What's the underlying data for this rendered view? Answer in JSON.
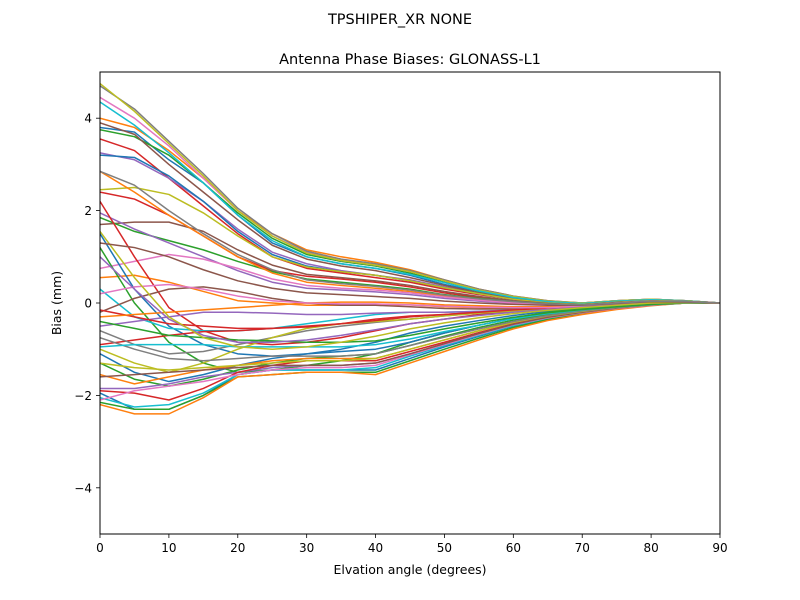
{
  "chart_data": {
    "type": "line",
    "suptitle": "TPSHIPER_XR     NONE",
    "title": "Antenna Phase Biases: GLONASS-L1",
    "xlabel": "Elvation angle (degrees)",
    "ylabel": "Bias (mm)",
    "xlim": [
      0,
      90
    ],
    "ylim": [
      -5,
      5
    ],
    "xticks": [
      0,
      10,
      20,
      30,
      40,
      50,
      60,
      70,
      80,
      90
    ],
    "yticks": [
      -4,
      -2,
      0,
      2,
      4
    ],
    "grid": false,
    "x": [
      0,
      5,
      10,
      15,
      20,
      25,
      30,
      35,
      40,
      45,
      50,
      55,
      60,
      65,
      70,
      75,
      80,
      85,
      90
    ],
    "series": [
      {
        "color": "#1f77b4",
        "values": [
          3.8,
          3.7,
          3.1,
          2.6,
          1.9,
          1.3,
          1.0,
          0.85,
          0.75,
          0.6,
          0.4,
          0.25,
          0.12,
          0.03,
          0.0,
          0.05,
          0.08,
          0.05,
          0.0
        ]
      },
      {
        "color": "#ff7f0e",
        "values": [
          4.0,
          3.8,
          3.3,
          2.7,
          2.0,
          1.5,
          1.15,
          1.0,
          0.88,
          0.72,
          0.5,
          0.3,
          0.15,
          0.05,
          0.0,
          0.05,
          0.08,
          0.05,
          0.0
        ]
      },
      {
        "color": "#2ca02c",
        "values": [
          3.75,
          3.6,
          3.2,
          2.6,
          1.95,
          1.4,
          1.05,
          0.9,
          0.8,
          0.65,
          0.45,
          0.25,
          0.1,
          0.02,
          -0.02,
          0.03,
          0.07,
          0.05,
          0.0
        ]
      },
      {
        "color": "#d62728",
        "values": [
          3.55,
          3.3,
          2.7,
          2.1,
          1.5,
          1.0,
          0.75,
          0.65,
          0.55,
          0.45,
          0.3,
          0.18,
          0.08,
          0.0,
          -0.03,
          0.02,
          0.06,
          0.04,
          0.0
        ]
      },
      {
        "color": "#9467bd",
        "values": [
          3.25,
          3.1,
          2.7,
          2.2,
          1.6,
          1.1,
          0.85,
          0.7,
          0.6,
          0.5,
          0.35,
          0.2,
          0.08,
          0.0,
          -0.03,
          0.02,
          0.05,
          0.04,
          0.0
        ]
      },
      {
        "color": "#8c564b",
        "values": [
          3.9,
          3.65,
          3.0,
          2.4,
          1.8,
          1.25,
          0.95,
          0.8,
          0.7,
          0.55,
          0.38,
          0.22,
          0.1,
          0.02,
          -0.02,
          0.03,
          0.06,
          0.04,
          0.0
        ]
      },
      {
        "color": "#e377c2",
        "values": [
          4.45,
          4.0,
          3.4,
          2.7,
          2.0,
          1.45,
          1.1,
          0.92,
          0.82,
          0.68,
          0.48,
          0.28,
          0.13,
          0.03,
          0.0,
          0.05,
          0.08,
          0.05,
          0.0
        ]
      },
      {
        "color": "#7f7f7f",
        "values": [
          4.7,
          4.2,
          3.5,
          2.8,
          2.05,
          1.5,
          1.12,
          0.95,
          0.85,
          0.7,
          0.5,
          0.3,
          0.15,
          0.05,
          0.0,
          0.05,
          0.08,
          0.05,
          0.0
        ]
      },
      {
        "color": "#bcbd22",
        "values": [
          4.75,
          4.15,
          3.45,
          2.75,
          2.0,
          1.45,
          1.08,
          0.92,
          0.82,
          0.68,
          0.48,
          0.28,
          0.14,
          0.04,
          0.0,
          0.05,
          0.08,
          0.05,
          0.0
        ]
      },
      {
        "color": "#17becf",
        "values": [
          4.35,
          3.85,
          3.25,
          2.6,
          1.9,
          1.35,
          1.0,
          0.85,
          0.75,
          0.62,
          0.44,
          0.26,
          0.12,
          0.03,
          -0.01,
          0.04,
          0.07,
          0.05,
          0.0
        ]
      },
      {
        "color": "#1f77b4",
        "values": [
          3.2,
          3.15,
          2.75,
          2.2,
          1.55,
          1.05,
          0.8,
          0.68,
          0.6,
          0.48,
          0.33,
          0.2,
          0.08,
          0.0,
          -0.03,
          0.02,
          0.05,
          0.04,
          0.0
        ]
      },
      {
        "color": "#bcbd22",
        "values": [
          2.45,
          2.5,
          2.35,
          1.95,
          1.45,
          1.0,
          0.78,
          0.68,
          0.6,
          0.48,
          0.33,
          0.2,
          0.08,
          0.0,
          -0.03,
          0.02,
          0.05,
          0.04,
          0.0
        ]
      },
      {
        "color": "#d62728",
        "values": [
          2.4,
          2.25,
          1.9,
          1.45,
          1.0,
          0.7,
          0.58,
          0.52,
          0.45,
          0.35,
          0.22,
          0.12,
          0.04,
          -0.02,
          -0.04,
          0.0,
          0.04,
          0.03,
          0.0
        ]
      },
      {
        "color": "#8c564b",
        "values": [
          1.7,
          1.75,
          1.75,
          1.55,
          1.15,
          0.82,
          0.62,
          0.55,
          0.48,
          0.38,
          0.25,
          0.14,
          0.05,
          -0.01,
          -0.04,
          0.01,
          0.04,
          0.03,
          0.0
        ]
      },
      {
        "color": "#2ca02c",
        "values": [
          1.85,
          1.55,
          1.35,
          1.15,
          0.9,
          0.68,
          0.52,
          0.45,
          0.38,
          0.3,
          0.18,
          0.1,
          0.03,
          -0.02,
          -0.05,
          0.0,
          0.04,
          0.03,
          0.0
        ]
      },
      {
        "color": "#ff7f0e",
        "values": [
          2.85,
          2.4,
          1.9,
          1.45,
          1.0,
          0.65,
          0.45,
          0.38,
          0.32,
          0.25,
          0.15,
          0.08,
          0.02,
          -0.03,
          -0.05,
          0.0,
          0.04,
          0.03,
          0.0
        ]
      },
      {
        "color": "#9467bd",
        "values": [
          1.95,
          1.6,
          1.3,
          1.0,
          0.7,
          0.45,
          0.32,
          0.28,
          0.24,
          0.18,
          0.1,
          0.04,
          -0.01,
          -0.04,
          -0.05,
          0.0,
          0.04,
          0.03,
          0.0
        ]
      },
      {
        "color": "#e377c2",
        "values": [
          0.75,
          0.9,
          1.05,
          0.95,
          0.75,
          0.52,
          0.38,
          0.32,
          0.28,
          0.22,
          0.13,
          0.06,
          0.0,
          -0.04,
          -0.05,
          0.0,
          0.04,
          0.03,
          0.0
        ]
      },
      {
        "color": "#ff7f0e",
        "values": [
          0.55,
          0.6,
          0.45,
          0.25,
          0.05,
          0.0,
          -0.05,
          -0.05,
          -0.03,
          -0.04,
          -0.08,
          -0.1,
          -0.12,
          -0.12,
          -0.1,
          -0.05,
          0.02,
          0.02,
          0.0
        ]
      },
      {
        "color": "#d62728",
        "values": [
          2.2,
          1.0,
          -0.1,
          -0.6,
          -0.85,
          -0.9,
          -0.85,
          -0.75,
          -0.6,
          -0.45,
          -0.35,
          -0.25,
          -0.18,
          -0.12,
          -0.08,
          -0.03,
          0.02,
          0.02,
          0.0
        ]
      },
      {
        "color": "#1f77b4",
        "values": [
          1.5,
          0.3,
          -0.5,
          -0.9,
          -1.1,
          -1.15,
          -1.1,
          -1.0,
          -0.85,
          -0.65,
          -0.5,
          -0.38,
          -0.27,
          -0.18,
          -0.1,
          -0.05,
          0.0,
          0.01,
          0.0
        ]
      },
      {
        "color": "#2ca02c",
        "values": [
          1.2,
          0.0,
          -0.85,
          -1.3,
          -1.5,
          -1.45,
          -1.35,
          -1.25,
          -1.1,
          -0.85,
          -0.65,
          -0.48,
          -0.33,
          -0.2,
          -0.12,
          -0.06,
          0.0,
          0.01,
          0.0
        ]
      },
      {
        "color": "#17becf",
        "values": [
          0.3,
          -0.3,
          -0.55,
          -0.6,
          -0.6,
          -0.55,
          -0.45,
          -0.35,
          -0.25,
          -0.2,
          -0.2,
          -0.18,
          -0.15,
          -0.12,
          -0.08,
          -0.04,
          0.01,
          0.01,
          0.0
        ]
      },
      {
        "color": "#8c564b",
        "values": [
          -0.2,
          0.1,
          0.3,
          0.35,
          0.25,
          0.1,
          0.0,
          -0.05,
          -0.05,
          -0.08,
          -0.12,
          -0.13,
          -0.13,
          -0.12,
          -0.08,
          -0.04,
          0.01,
          0.01,
          0.0
        ]
      },
      {
        "color": "#9467bd",
        "values": [
          -0.5,
          -0.4,
          -0.3,
          -0.2,
          -0.2,
          -0.22,
          -0.25,
          -0.25,
          -0.22,
          -0.2,
          -0.2,
          -0.18,
          -0.15,
          -0.12,
          -0.08,
          -0.04,
          0.01,
          0.01,
          0.0
        ]
      },
      {
        "color": "#d62728",
        "values": [
          -0.9,
          -0.8,
          -0.7,
          -0.62,
          -0.6,
          -0.55,
          -0.5,
          -0.45,
          -0.35,
          -0.28,
          -0.25,
          -0.2,
          -0.16,
          -0.12,
          -0.08,
          -0.04,
          0.0,
          0.01,
          0.0
        ]
      },
      {
        "color": "#7f7f7f",
        "values": [
          -0.6,
          -0.9,
          -1.1,
          -1.05,
          -0.9,
          -0.75,
          -0.6,
          -0.5,
          -0.42,
          -0.35,
          -0.28,
          -0.22,
          -0.17,
          -0.12,
          -0.08,
          -0.04,
          0.0,
          0.01,
          0.0
        ]
      },
      {
        "color": "#bcbd22",
        "values": [
          -1.0,
          -1.3,
          -1.5,
          -1.3,
          -1.0,
          -0.75,
          -0.55,
          -0.45,
          -0.4,
          -0.35,
          -0.28,
          -0.22,
          -0.17,
          -0.12,
          -0.08,
          -0.04,
          0.0,
          0.01,
          0.0
        ]
      },
      {
        "color": "#1f77b4",
        "values": [
          -1.1,
          -1.5,
          -1.7,
          -1.55,
          -1.35,
          -1.2,
          -1.1,
          -1.05,
          -1.0,
          -0.85,
          -0.65,
          -0.48,
          -0.33,
          -0.22,
          -0.14,
          -0.08,
          -0.02,
          0.0,
          0.0
        ]
      },
      {
        "color": "#2ca02c",
        "values": [
          -1.3,
          -1.65,
          -1.8,
          -1.65,
          -1.45,
          -1.3,
          -1.2,
          -1.15,
          -1.1,
          -0.92,
          -0.72,
          -0.53,
          -0.37,
          -0.25,
          -0.16,
          -0.09,
          -0.03,
          0.0,
          0.0
        ]
      },
      {
        "color": "#ff7f0e",
        "values": [
          -1.55,
          -1.75,
          -1.6,
          -1.45,
          -1.35,
          -1.25,
          -1.2,
          -1.2,
          -1.2,
          -1.0,
          -0.8,
          -0.6,
          -0.42,
          -0.28,
          -0.18,
          -0.1,
          -0.04,
          0.0,
          0.0
        ]
      },
      {
        "color": "#9467bd",
        "values": [
          -1.85,
          -1.85,
          -1.75,
          -1.6,
          -1.5,
          -1.4,
          -1.35,
          -1.35,
          -1.3,
          -1.1,
          -0.88,
          -0.66,
          -0.46,
          -0.3,
          -0.2,
          -0.11,
          -0.04,
          0.0,
          0.0
        ]
      },
      {
        "color": "#d62728",
        "values": [
          -1.9,
          -1.95,
          -2.1,
          -1.85,
          -1.5,
          -1.35,
          -1.25,
          -1.25,
          -1.25,
          -1.05,
          -0.85,
          -0.64,
          -0.45,
          -0.3,
          -0.2,
          -0.11,
          -0.04,
          0.0,
          0.0
        ]
      },
      {
        "color": "#1f77b4",
        "values": [
          -1.95,
          -2.3,
          -2.3,
          -2.0,
          -1.55,
          -1.45,
          -1.45,
          -1.45,
          -1.45,
          -1.2,
          -0.95,
          -0.72,
          -0.5,
          -0.34,
          -0.22,
          -0.12,
          -0.05,
          0.0,
          0.0
        ]
      },
      {
        "color": "#17becf",
        "values": [
          -2.05,
          -2.25,
          -2.2,
          -1.95,
          -1.55,
          -1.45,
          -1.45,
          -1.45,
          -1.4,
          -1.15,
          -0.92,
          -0.7,
          -0.49,
          -0.33,
          -0.21,
          -0.12,
          -0.05,
          0.0,
          0.0
        ]
      },
      {
        "color": "#2ca02c",
        "values": [
          -2.15,
          -2.3,
          -2.3,
          -2.0,
          -1.6,
          -1.55,
          -1.5,
          -1.5,
          -1.5,
          -1.25,
          -1.0,
          -0.76,
          -0.53,
          -0.36,
          -0.24,
          -0.13,
          -0.05,
          0.0,
          0.0
        ]
      },
      {
        "color": "#ff7f0e",
        "values": [
          -2.2,
          -2.4,
          -2.4,
          -2.05,
          -1.6,
          -1.55,
          -1.5,
          -1.5,
          -1.55,
          -1.3,
          -1.05,
          -0.8,
          -0.56,
          -0.38,
          -0.25,
          -0.14,
          -0.06,
          0.0,
          0.0
        ]
      },
      {
        "color": "#e377c2",
        "values": [
          -2.1,
          -1.9,
          -1.8,
          -1.7,
          -1.55,
          -1.45,
          -1.4,
          -1.4,
          -1.35,
          -1.12,
          -0.9,
          -0.68,
          -0.47,
          -0.32,
          -0.21,
          -0.12,
          -0.05,
          0.0,
          0.0
        ]
      },
      {
        "color": "#8c564b",
        "values": [
          -1.6,
          -1.55,
          -1.5,
          -1.45,
          -1.4,
          -1.35,
          -1.35,
          -1.35,
          -1.3,
          -1.1,
          -0.88,
          -0.66,
          -0.46,
          -0.31,
          -0.2,
          -0.11,
          -0.04,
          0.0,
          0.0
        ]
      },
      {
        "color": "#bcbd22",
        "values": [
          -1.3,
          -1.4,
          -1.45,
          -1.4,
          -1.35,
          -1.3,
          -1.25,
          -1.25,
          -1.2,
          -1.0,
          -0.8,
          -0.6,
          -0.42,
          -0.28,
          -0.18,
          -0.1,
          -0.04,
          0.0,
          0.0
        ]
      },
      {
        "color": "#7f7f7f",
        "values": [
          -0.75,
          -1.0,
          -1.2,
          -1.25,
          -1.2,
          -1.15,
          -1.15,
          -1.15,
          -1.1,
          -0.92,
          -0.74,
          -0.56,
          -0.4,
          -0.27,
          -0.17,
          -0.1,
          -0.04,
          0.0,
          0.0
        ]
      },
      {
        "color": "#17becf",
        "values": [
          -0.95,
          -0.9,
          -0.9,
          -0.9,
          -0.95,
          -0.95,
          -0.95,
          -0.95,
          -0.9,
          -0.78,
          -0.62,
          -0.48,
          -0.34,
          -0.23,
          -0.15,
          -0.08,
          -0.03,
          0.0,
          0.0
        ]
      },
      {
        "color": "#2ca02c",
        "values": [
          -0.4,
          -0.55,
          -0.7,
          -0.75,
          -0.8,
          -0.82,
          -0.85,
          -0.85,
          -0.82,
          -0.7,
          -0.56,
          -0.43,
          -0.31,
          -0.21,
          -0.14,
          -0.08,
          -0.03,
          0.0,
          0.0
        ]
      },
      {
        "color": "#d62728",
        "values": [
          -0.15,
          -0.3,
          -0.45,
          -0.5,
          -0.55,
          -0.55,
          -0.52,
          -0.45,
          -0.38,
          -0.3,
          -0.25,
          -0.2,
          -0.15,
          -0.11,
          -0.07,
          -0.03,
          0.0,
          0.01,
          0.0
        ]
      },
      {
        "color": "#ff7f0e",
        "values": [
          -0.3,
          -0.25,
          -0.2,
          -0.15,
          -0.1,
          -0.05,
          0.0,
          0.02,
          0.02,
          0.0,
          -0.04,
          -0.06,
          -0.08,
          -0.08,
          -0.06,
          -0.03,
          0.01,
          0.01,
          0.0
        ]
      },
      {
        "color": "#e377c2",
        "values": [
          0.2,
          0.35,
          0.4,
          0.3,
          0.15,
          0.05,
          0.0,
          -0.02,
          -0.02,
          -0.04,
          -0.07,
          -0.09,
          -0.1,
          -0.1,
          -0.07,
          -0.03,
          0.01,
          0.01,
          0.0
        ]
      },
      {
        "color": "#9467bd",
        "values": [
          1.0,
          0.3,
          -0.35,
          -0.7,
          -0.85,
          -0.85,
          -0.8,
          -0.7,
          -0.58,
          -0.45,
          -0.35,
          -0.27,
          -0.2,
          -0.14,
          -0.09,
          -0.04,
          0.0,
          0.01,
          0.0
        ]
      },
      {
        "color": "#bcbd22",
        "values": [
          1.55,
          0.55,
          -0.3,
          -0.75,
          -0.95,
          -1.0,
          -0.95,
          -0.85,
          -0.72,
          -0.56,
          -0.43,
          -0.32,
          -0.23,
          -0.16,
          -0.1,
          -0.05,
          0.0,
          0.01,
          0.0
        ]
      },
      {
        "color": "#8c564b",
        "values": [
          1.3,
          1.2,
          1.0,
          0.72,
          0.48,
          0.32,
          0.22,
          0.18,
          0.14,
          0.1,
          0.04,
          0.0,
          -0.03,
          -0.05,
          -0.05,
          -0.01,
          0.03,
          0.02,
          0.0
        ]
      },
      {
        "color": "#7f7f7f",
        "values": [
          2.85,
          2.55,
          2.0,
          1.5,
          1.05,
          0.72,
          0.5,
          0.42,
          0.36,
          0.28,
          0.17,
          0.09,
          0.03,
          -0.02,
          -0.04,
          0.0,
          0.04,
          0.03,
          0.0
        ]
      }
    ]
  }
}
